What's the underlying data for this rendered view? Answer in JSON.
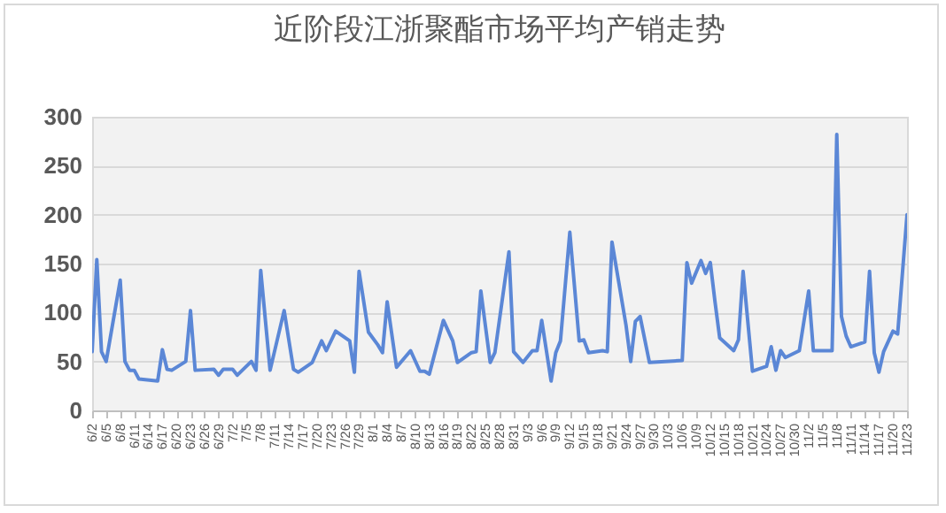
{
  "chart_data": {
    "type": "line",
    "title": "近阶段江浙聚酯市场平均产销走势",
    "x": [
      "--06-02",
      "--06-03",
      "--06-04",
      "--06-05",
      "--06-08",
      "--06-09",
      "--06-10",
      "--06-11",
      "--06-12",
      "--06-16",
      "--06-17",
      "--06-18",
      "--06-19",
      "--06-22",
      "--06-23",
      "--06-24",
      "--06-28",
      "--06-29",
      "--06-30",
      "--07-02",
      "--07-03",
      "--07-06",
      "--07-07",
      "--07-08",
      "--07-10",
      "--07-13",
      "--07-15",
      "--07-16",
      "--07-19",
      "--07-21",
      "--07-22",
      "--07-24",
      "--07-27",
      "--07-28",
      "--07-29",
      "--07-31",
      "--08-02",
      "--08-03",
      "--08-04",
      "--08-06",
      "--08-09",
      "--08-11",
      "--08-12",
      "--08-13",
      "--08-16",
      "--08-18",
      "--08-19",
      "--08-22",
      "--08-23",
      "--08-24",
      "--08-26",
      "--08-27",
      "--08-30",
      "--08-31",
      "--09-02",
      "--09-04",
      "--09-05",
      "--09-06",
      "--09-08",
      "--09-09",
      "--09-10",
      "--09-12",
      "--09-14",
      "--09-15",
      "--09-16",
      "--09-19",
      "--09-20",
      "--09-21",
      "--09-24",
      "--09-25",
      "--09-26",
      "--09-27",
      "--09-29",
      "--10-06",
      "--10-07",
      "--10-08",
      "--10-10",
      "--10-11",
      "--10-12",
      "--10-13",
      "--10-14",
      "--10-17",
      "--10-18",
      "--10-19",
      "--10-21",
      "--10-24",
      "--10-25",
      "--10-26",
      "--10-27",
      "--10-28",
      "--10-31",
      "--11-02",
      "--11-03",
      "--11-07",
      "--11-08",
      "--11-09",
      "--11-10",
      "--11-11",
      "--11-14",
      "--11-15",
      "--11-16",
      "--11-17",
      "--11-18",
      "--11-20",
      "--11-21",
      "--11-23"
    ],
    "series": [
      {
        "color": "#5b87d6",
        "values": [
          60,
          154,
          60,
          50,
          133,
          50,
          41,
          41,
          32,
          30,
          62,
          42,
          41,
          50,
          102,
          41,
          42,
          36,
          42,
          42,
          36,
          50,
          41,
          143,
          41,
          102,
          42,
          39,
          49,
          71,
          61,
          81,
          71,
          39,
          142,
          80,
          67,
          59,
          111,
          44,
          61,
          40,
          40,
          37,
          92,
          71,
          49,
          59,
          60,
          122,
          49,
          59,
          162,
          60,
          49,
          61,
          61,
          92,
          30,
          59,
          71,
          182,
          71,
          72,
          59,
          61,
          60,
          172,
          87,
          50,
          91,
          96,
          49,
          51,
          151,
          130,
          153,
          140,
          151,
          111,
          74,
          61,
          72,
          142,
          40,
          45,
          65,
          41,
          61,
          54,
          61,
          122,
          61,
          61,
          282,
          96,
          76,
          65,
          70,
          142,
          59,
          39,
          60,
          81,
          78,
          200
        ]
      }
    ],
    "xlim": [
      "--06-02",
      "--11-23"
    ],
    "xticks": [
      {
        "value": "--06-02",
        "label": "6/2"
      },
      {
        "value": "--06-05",
        "label": "6/5"
      },
      {
        "value": "--06-08",
        "label": "6/8"
      },
      {
        "value": "--06-11",
        "label": "6/11"
      },
      {
        "value": "--06-14",
        "label": "6/14"
      },
      {
        "value": "--06-17",
        "label": "6/17"
      },
      {
        "value": "--06-20",
        "label": "6/20"
      },
      {
        "value": "--06-23",
        "label": "6/23"
      },
      {
        "value": "--06-26",
        "label": "6/26"
      },
      {
        "value": "--06-29",
        "label": "6/29"
      },
      {
        "value": "--07-02",
        "label": "7/2"
      },
      {
        "value": "--07-05",
        "label": "7/5"
      },
      {
        "value": "--07-08",
        "label": "7/8"
      },
      {
        "value": "--07-11",
        "label": "7/11"
      },
      {
        "value": "--07-14",
        "label": "7/14"
      },
      {
        "value": "--07-17",
        "label": "7/17"
      },
      {
        "value": "--07-20",
        "label": "7/20"
      },
      {
        "value": "--07-23",
        "label": "7/23"
      },
      {
        "value": "--07-26",
        "label": "7/26"
      },
      {
        "value": "--07-29",
        "label": "7/29"
      },
      {
        "value": "--08-01",
        "label": "8/1"
      },
      {
        "value": "--08-04",
        "label": "8/4"
      },
      {
        "value": "--08-07",
        "label": "8/7"
      },
      {
        "value": "--08-10",
        "label": "8/10"
      },
      {
        "value": "--08-13",
        "label": "8/13"
      },
      {
        "value": "--08-16",
        "label": "8/16"
      },
      {
        "value": "--08-19",
        "label": "8/19"
      },
      {
        "value": "--08-22",
        "label": "8/22"
      },
      {
        "value": "--08-25",
        "label": "8/25"
      },
      {
        "value": "--08-28",
        "label": "8/28"
      },
      {
        "value": "--08-31",
        "label": "8/31"
      },
      {
        "value": "--09-03",
        "label": "9/3"
      },
      {
        "value": "--09-06",
        "label": "9/6"
      },
      {
        "value": "--09-09",
        "label": "9/9"
      },
      {
        "value": "--09-12",
        "label": "9/12"
      },
      {
        "value": "--09-15",
        "label": "9/15"
      },
      {
        "value": "--09-18",
        "label": "9/18"
      },
      {
        "value": "--09-21",
        "label": "9/21"
      },
      {
        "value": "--09-24",
        "label": "9/24"
      },
      {
        "value": "--09-27",
        "label": "9/27"
      },
      {
        "value": "--09-30",
        "label": "9/30"
      },
      {
        "value": "--10-03",
        "label": "10/3"
      },
      {
        "value": "--10-06",
        "label": "10/6"
      },
      {
        "value": "--10-09",
        "label": "10/9"
      },
      {
        "value": "--10-12",
        "label": "10/12"
      },
      {
        "value": "--10-15",
        "label": "10/15"
      },
      {
        "value": "--10-18",
        "label": "10/18"
      },
      {
        "value": "--10-21",
        "label": "10/21"
      },
      {
        "value": "--10-24",
        "label": "10/24"
      },
      {
        "value": "--10-27",
        "label": "10/27"
      },
      {
        "value": "--10-30",
        "label": "10/30"
      },
      {
        "value": "--11-02",
        "label": "11/2"
      },
      {
        "value": "--11-05",
        "label": "11/5"
      },
      {
        "value": "--11-08",
        "label": "11/8"
      },
      {
        "value": "--11-11",
        "label": "11/11"
      },
      {
        "value": "--11-14",
        "label": "11/14"
      },
      {
        "value": "--11-17",
        "label": "11/17"
      },
      {
        "value": "--11-20",
        "label": "11/20"
      },
      {
        "value": "--11-23",
        "label": "11/23"
      }
    ],
    "ylim": [
      0,
      300
    ],
    "yticks": [
      0,
      50,
      100,
      150,
      200,
      250,
      300
    ],
    "grid": "y",
    "marker": "none",
    "line_style": "solid"
  }
}
